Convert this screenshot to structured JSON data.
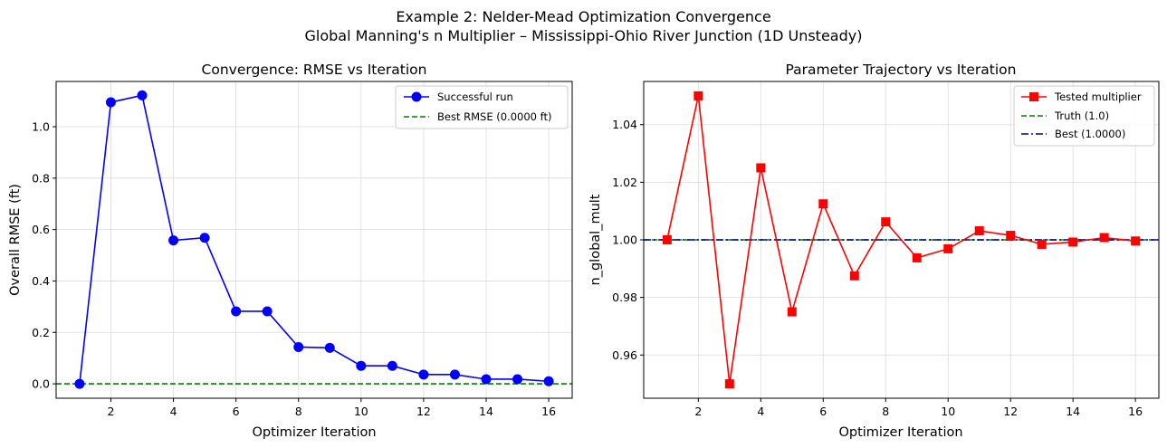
{
  "figure": {
    "title_line1": "Example 2: Nelder-Mead Optimization Convergence",
    "title_line2": "Global Manning's n Multiplier – Mississippi-Ohio River Junction (1D Unsteady)"
  },
  "chart_data": [
    {
      "type": "line",
      "title": "Convergence: RMSE vs Iteration",
      "xlabel": "Optimizer Iteration",
      "ylabel": "Overall RMSE (ft)",
      "xlim": [
        0.25,
        16.75
      ],
      "ylim": [
        -0.056,
        1.176
      ],
      "xticks": [
        2,
        4,
        6,
        8,
        10,
        12,
        14,
        16
      ],
      "yticks": [
        0.0,
        0.2,
        0.4,
        0.6,
        0.8,
        1.0
      ],
      "ytick_labels": [
        "0.0",
        "0.2",
        "0.4",
        "0.6",
        "0.8",
        "1.0"
      ],
      "grid": true,
      "legend_position": "top-right",
      "series": [
        {
          "name": "Successful run",
          "color": "#0000ff",
          "marker": "circle",
          "x": [
            1,
            2,
            3,
            4,
            5,
            6,
            7,
            8,
            9,
            10,
            11,
            12,
            13,
            14,
            15,
            16
          ],
          "y": [
            0.0,
            1.095,
            1.122,
            0.558,
            0.568,
            0.282,
            0.282,
            0.143,
            0.14,
            0.07,
            0.07,
            0.036,
            0.036,
            0.018,
            0.018,
            0.01
          ]
        }
      ],
      "hlines": [
        {
          "name": "Best RMSE (0.0000 ft)",
          "y": 0.0,
          "color": "#008000",
          "style": "dashed"
        }
      ]
    },
    {
      "type": "line",
      "title": "Parameter Trajectory vs Iteration",
      "xlabel": "Optimizer Iteration",
      "ylabel": "n_global_mult",
      "xlim": [
        0.25,
        16.75
      ],
      "ylim": [
        0.945,
        1.055
      ],
      "xticks": [
        2,
        4,
        6,
        8,
        10,
        12,
        14,
        16
      ],
      "yticks": [
        0.96,
        0.98,
        1.0,
        1.02,
        1.04
      ],
      "ytick_labels": [
        "0.96",
        "0.98",
        "1.00",
        "1.02",
        "1.04"
      ],
      "grid": true,
      "legend_position": "top-right",
      "series": [
        {
          "name": "Tested multiplier",
          "color": "#ff0000",
          "marker": "square",
          "x": [
            1,
            2,
            3,
            4,
            5,
            6,
            7,
            8,
            9,
            10,
            11,
            12,
            13,
            14,
            15,
            16
          ],
          "y": [
            1.0,
            1.05,
            0.95,
            1.025,
            0.975,
            1.0125,
            0.9875,
            1.00625,
            0.99375,
            0.99688,
            1.00313,
            1.00156,
            0.99844,
            0.99922,
            1.00078,
            0.9996
          ]
        }
      ],
      "hlines": [
        {
          "name": "Truth (1.0)",
          "y": 1.0,
          "color": "#008000",
          "style": "dashed"
        },
        {
          "name": "Best (1.0000)",
          "y": 1.0,
          "color": "#00008b",
          "style": "dashdot"
        }
      ]
    }
  ]
}
